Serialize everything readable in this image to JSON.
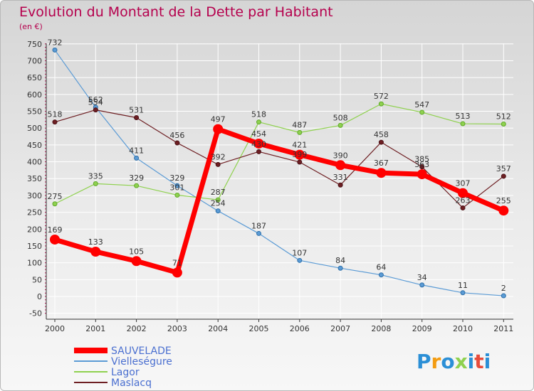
{
  "colors": {
    "axis": "#333333",
    "grid": "#ffffff",
    "tick_minor": "#c2185b",
    "title": "#b5004d",
    "label": "#333333"
  },
  "logo_text": "Proxiti",
  "chart_data": {
    "type": "line",
    "title": "Evolution du Montant de la Dette par Habitant",
    "subtitle": "(en €)",
    "xlabel": "",
    "ylabel": "",
    "ylim": [
      -50,
      750
    ],
    "yticks": [
      750,
      700,
      650,
      600,
      550,
      500,
      450,
      400,
      350,
      300,
      250,
      200,
      150,
      100,
      50,
      0,
      -50
    ],
    "categories": [
      "2000",
      "2001",
      "2002",
      "2003",
      "2004",
      "2005",
      "2006",
      "2007",
      "2008",
      "2009",
      "2010",
      "2011"
    ],
    "grid": true,
    "legend_position": "bottom-left",
    "series": [
      {
        "name": "Vielleségure",
        "color": "#5b9bd5",
        "emphasis": false,
        "values": [
          732,
          562,
          411,
          329,
          254,
          187,
          107,
          84,
          64,
          34,
          11,
          2
        ],
        "labels": [
          "732",
          "562",
          "411",
          "329",
          "254",
          "187",
          "107",
          "84",
          "64",
          "34",
          "11",
          "2"
        ]
      },
      {
        "name": "Lagor",
        "color": "#8fd14f",
        "emphasis": false,
        "values": [
          275,
          335,
          329,
          301,
          287,
          518,
          487,
          508,
          572,
          547,
          513,
          512
        ],
        "labels": [
          "275",
          "335",
          "329",
          "301",
          "287",
          "518",
          "487",
          "508",
          "572",
          "547",
          "513",
          "512"
        ]
      },
      {
        "name": "Maslacq",
        "color": "#6e1f23",
        "emphasis": false,
        "values": [
          518,
          554,
          531,
          456,
          392,
          430,
          399,
          331,
          458,
          385,
          263,
          357
        ],
        "labels": [
          "518",
          "554",
          "531",
          "456",
          "392",
          "430",
          "399",
          "331",
          "458",
          "385",
          "263",
          "357"
        ]
      },
      {
        "name": "SAUVELADE",
        "color": "#ff0000",
        "emphasis": true,
        "values": [
          169,
          133,
          105,
          71,
          497,
          454,
          421,
          390,
          367,
          363,
          307,
          255
        ],
        "labels": [
          "169",
          "133",
          "105",
          "71",
          "497",
          "454",
          "421",
          "390",
          "367",
          "363",
          "307",
          "255"
        ]
      }
    ],
    "legend": [
      "SAUVELADE",
      "Vielleségure",
      "Lagor",
      "Maslacq"
    ]
  }
}
